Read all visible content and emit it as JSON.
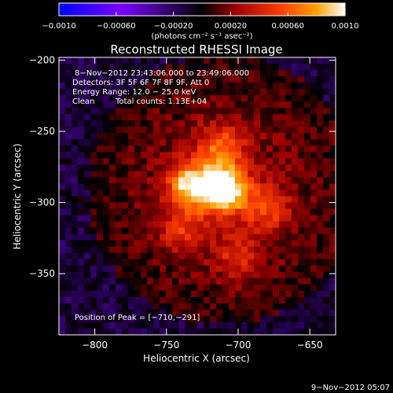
{
  "chart_data": {
    "type": "heatmap",
    "title": "Reconstructed RHESSI Image",
    "xlabel": "Heliocentric X (arcsec)",
    "ylabel": "Heliocentric Y (arcsec)",
    "xlim": [
      -825,
      -632
    ],
    "ylim": [
      -393,
      -198
    ],
    "x_ticks": [
      -800,
      -750,
      -700,
      -650
    ],
    "y_ticks": [
      -200,
      -250,
      -300,
      -350
    ],
    "x_tick_labels": [
      "−800",
      "−750",
      "−700",
      "−650"
    ],
    "y_tick_labels": [
      "−200",
      "−250",
      "−300",
      "−350"
    ],
    "colorbar": {
      "range": [
        -0.001,
        0.001
      ],
      "tick_values": [
        -0.001,
        -0.0006,
        -0.0002,
        0.0002,
        0.0006,
        0.001
      ],
      "tick_labels": [
        "−0.0010",
        "−0.00060",
        "−0.00020",
        "0.00020",
        "0.00060",
        "0.0010"
      ],
      "units_label": "(photons cm⁻² s⁻¹ asec⁻²)",
      "colormap": [
        "#0000ff",
        "#7a00ff",
        "#000000",
        "#a00000",
        "#ff4000",
        "#ffa000",
        "#ffffff"
      ]
    },
    "annotations": {
      "time_range": "8−Nov−2012 23:43:06.000 to 23:49:06.000",
      "detectors": "Detectors: 3F 5F 6F 7F 8F 9F, Att 0",
      "energy_range": "Energy Range: 12.0 − 25.0 keV",
      "clean": "Clean",
      "total_counts": "Total counts: 1.13E+04",
      "peak_position": "Position of Peak = [−710,−291]"
    },
    "sources": [
      {
        "x": -710,
        "y": -291,
        "relative_intensity": 1.0
      },
      {
        "x": -733,
        "y": -288,
        "relative_intensity": 0.75
      },
      {
        "x": -712,
        "y": -262,
        "relative_intensity": 0.45
      },
      {
        "x": -740,
        "y": -320,
        "relative_intensity": 0.3
      },
      {
        "x": -680,
        "y": -305,
        "relative_intensity": 0.35
      },
      {
        "x": -700,
        "y": -340,
        "relative_intensity": 0.3
      }
    ],
    "peak": {
      "x": -710,
      "y": -291
    }
  },
  "footer": {
    "timestamp": "9−Nov−2012 05:07"
  }
}
